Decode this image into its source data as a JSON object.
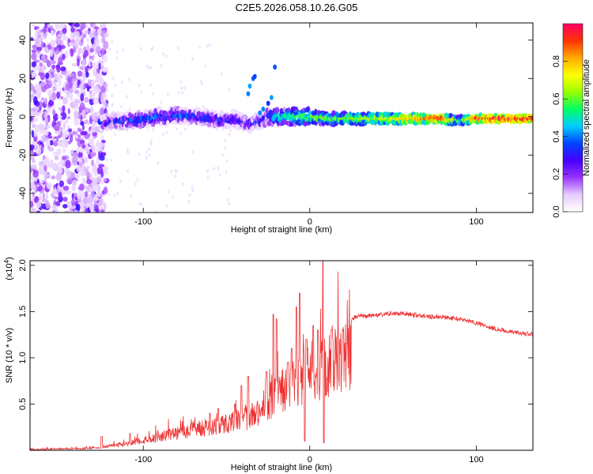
{
  "title": "C2E5.2026.058.10.26.G05",
  "chart_data": [
    {
      "type": "heatmap",
      "name": "spectrogram",
      "xlabel": "Height of straight line (km)",
      "ylabel": "Frequency (Hz)",
      "xlim": [
        -168,
        134
      ],
      "ylim": [
        -50,
        49
      ],
      "xticks": [
        -100,
        0,
        100
      ],
      "xtick_labels": [
        "-100",
        "0",
        "100"
      ],
      "yticks": [
        -40,
        -20,
        0,
        20,
        40
      ],
      "ytick_labels": [
        "-40",
        "-20",
        "0",
        "20",
        "40"
      ],
      "colorbar": {
        "label": "Normalized spectral amplitude",
        "range": [
          0,
          1
        ],
        "ticks": [
          0,
          0.2,
          0.4,
          0.6,
          0.8
        ],
        "tick_labels": [
          "0.0",
          "0.2",
          "0.4",
          "0.6",
          "0.8"
        ],
        "colors": [
          "#ffffff",
          "#e6ccff",
          "#9933ff",
          "#4400ff",
          "#0044ff",
          "#00ccff",
          "#00ff66",
          "#99ff00",
          "#ffff00",
          "#ffaa00",
          "#ff3300",
          "#ff0066"
        ]
      },
      "ridge": {
        "x": [
          -125,
          -110,
          -100,
          -90,
          -80,
          -70,
          -60,
          -50,
          -45,
          -40,
          -35,
          -30,
          -25,
          -20,
          -10,
          0,
          10,
          20,
          30,
          40,
          50,
          60,
          70,
          80,
          90,
          100,
          110,
          120,
          134
        ],
        "frequency": [
          -3,
          -2,
          -1,
          0,
          1,
          0,
          -1,
          -2,
          -1,
          -3,
          -4,
          -2,
          0,
          0,
          0,
          0,
          -1,
          -1,
          -1,
          -1,
          -1,
          -1,
          -1,
          -1,
          -2,
          -1,
          -1,
          -1,
          -1
        ],
        "amplitude": [
          0.3,
          0.35,
          0.38,
          0.4,
          0.38,
          0.36,
          0.34,
          0.32,
          0.3,
          0.28,
          0.3,
          0.34,
          0.4,
          0.5,
          0.55,
          0.6,
          0.6,
          0.62,
          0.66,
          0.7,
          0.75,
          0.8,
          0.85,
          0.9,
          0.55,
          0.92,
          0.95,
          0.96,
          0.97
        ]
      },
      "arc": {
        "x": [
          -37,
          -36,
          -34,
          -33,
          -30,
          -28,
          -25,
          -23,
          -21
        ],
        "frequency": [
          12,
          16,
          20,
          21,
          2,
          4,
          7,
          10,
          26
        ]
      }
    },
    {
      "type": "line",
      "name": "snr",
      "xlabel": "Height of straight line (km)",
      "ylabel": "SNR (10 * v/v)",
      "multiplier_label": "(x10",
      "multiplier_exponent": "4",
      "multiplier_close": ")",
      "color": "#ee3333",
      "xlim": [
        -168,
        134
      ],
      "ylim": [
        0,
        2.05
      ],
      "xticks": [
        -100,
        0,
        100
      ],
      "xtick_labels": [
        "-100",
        "0",
        "100"
      ],
      "yticks": [
        0.5,
        1.0,
        1.5,
        2.0
      ],
      "ytick_labels": [
        "0.5",
        "1.0",
        "1.5",
        "2.0"
      ],
      "envelope_x": [
        -168,
        -150,
        -130,
        -120,
        -110,
        -100,
        -90,
        -80,
        -70,
        -60,
        -50,
        -40,
        -30,
        -25,
        -20,
        -15,
        -10,
        -5,
        0,
        5,
        10,
        15,
        20,
        25,
        30,
        40,
        50,
        60,
        70,
        80,
        90,
        100,
        110,
        120,
        130,
        134
      ],
      "envelope_y": [
        0.01,
        0.02,
        0.03,
        0.06,
        0.1,
        0.15,
        0.2,
        0.26,
        0.3,
        0.34,
        0.4,
        0.46,
        0.56,
        0.7,
        0.82,
        0.9,
        1.0,
        1.05,
        1.08,
        1.15,
        1.25,
        1.32,
        1.38,
        1.42,
        1.45,
        1.46,
        1.48,
        1.47,
        1.45,
        1.44,
        1.42,
        1.38,
        1.32,
        1.28,
        1.26,
        1.25
      ],
      "spikes": [
        {
          "x": -125,
          "y": 0.15
        },
        {
          "x": -108,
          "y": 0.18
        },
        {
          "x": -60,
          "y": 0.4
        },
        {
          "x": -55,
          "y": 0.45
        },
        {
          "x": -45,
          "y": 0.5
        },
        {
          "x": -41,
          "y": 0.7
        },
        {
          "x": -37,
          "y": 0.8
        },
        {
          "x": -26,
          "y": 0.85
        },
        {
          "x": -22,
          "y": 1.47
        },
        {
          "x": -20,
          "y": 1.42
        },
        {
          "x": -13,
          "y": 0.95
        },
        {
          "x": -11,
          "y": 1.1
        },
        {
          "x": -8,
          "y": 1.55
        },
        {
          "x": -6,
          "y": 1.7
        },
        {
          "x": -2,
          "y": 1.2
        },
        {
          "x": 2,
          "y": 1.35
        },
        {
          "x": 5,
          "y": 1.3
        },
        {
          "x": 8,
          "y": 2.05
        },
        {
          "x": 13,
          "y": 1.3
        }
      ],
      "dips": [
        {
          "x": -3,
          "y": 0.1
        },
        {
          "x": 8.5,
          "y": 0.08
        },
        {
          "x": 10,
          "y": 0.6
        }
      ]
    }
  ]
}
